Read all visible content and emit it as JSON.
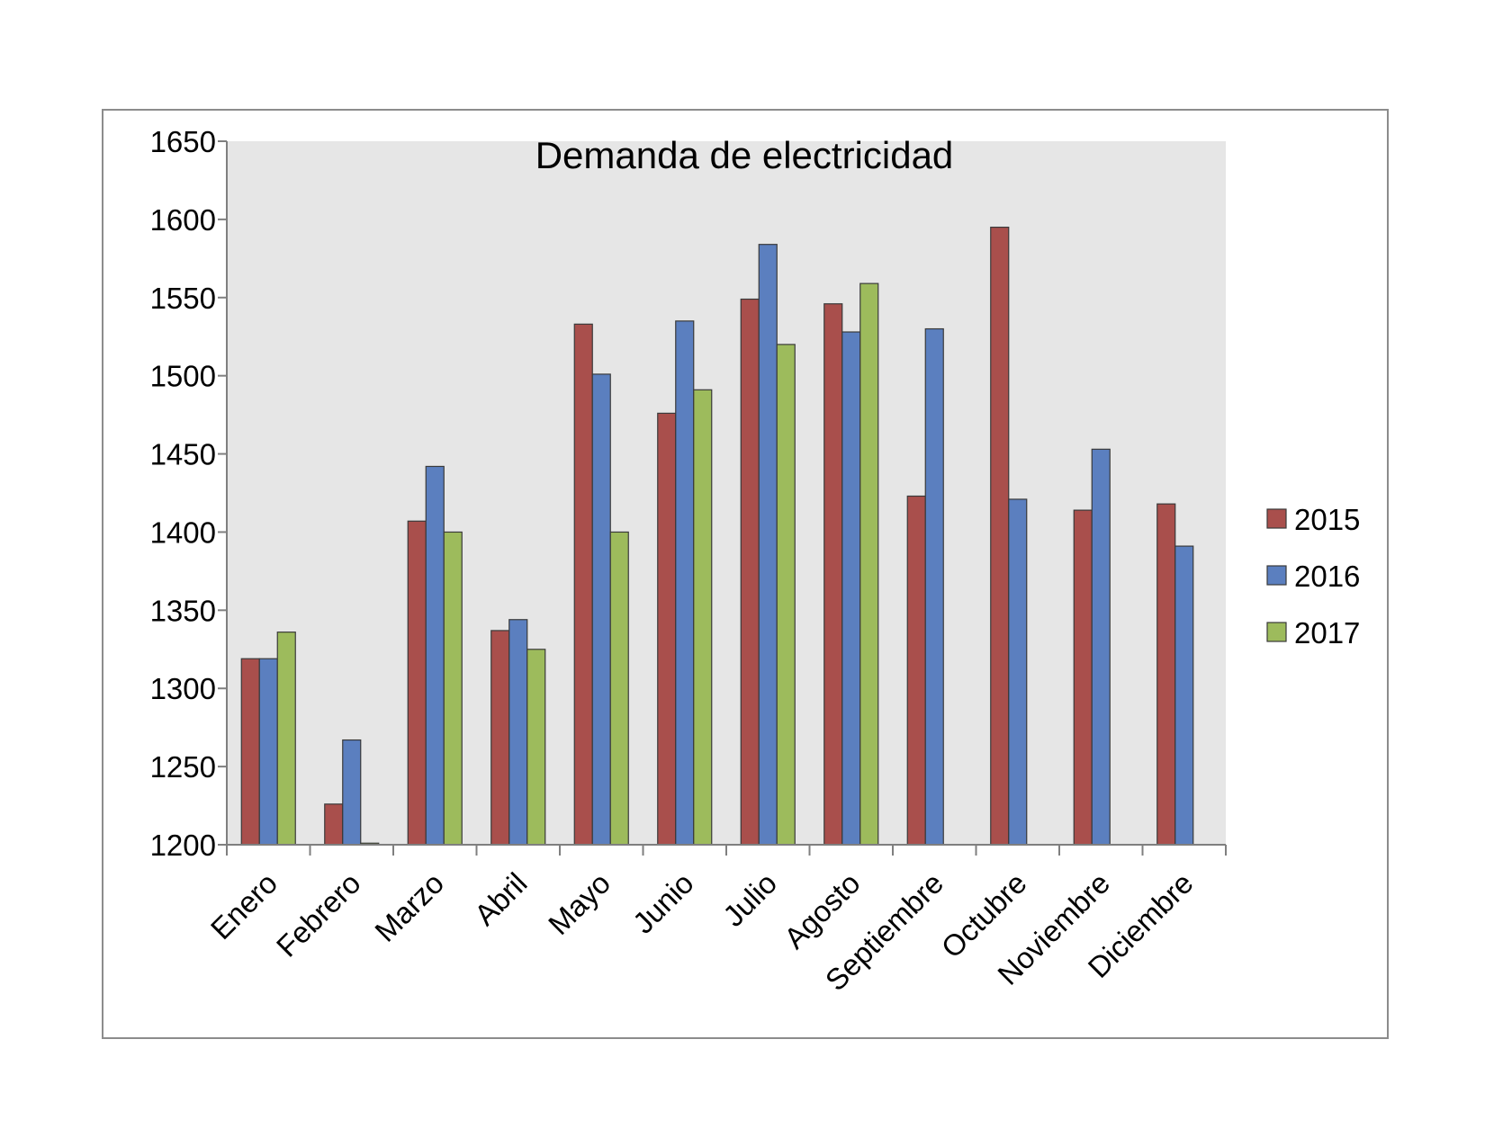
{
  "chart_data": {
    "type": "bar",
    "title": "Demanda de electricidad",
    "xlabel": "",
    "ylabel": "",
    "ylim": [
      1200,
      1650
    ],
    "yticks": [
      "1200",
      "1250",
      "1300",
      "1350",
      "1400",
      "1450",
      "1500",
      "1550",
      "1600",
      "1650"
    ],
    "categories": [
      "Enero",
      "Febrero",
      "Marzo",
      "Abril",
      "Mayo",
      "Junio",
      "Julio",
      "Agosto",
      "Septiembre",
      "Octubre",
      "Noviembre",
      "Diciembre"
    ],
    "series": [
      {
        "name": "2015",
        "color": "#a94f4c",
        "values": [
          1319,
          1226,
          1407,
          1337,
          1533,
          1476,
          1549,
          1546,
          1423,
          1595,
          1414,
          1418
        ]
      },
      {
        "name": "2016",
        "color": "#5b7fbf",
        "values": [
          1319,
          1267,
          1442,
          1344,
          1501,
          1535,
          1584,
          1528,
          1530,
          1421,
          1453,
          1391
        ]
      },
      {
        "name": "2017",
        "color": "#9dbb5c",
        "values": [
          1336,
          1201,
          1400,
          1325,
          1400,
          1491,
          1520,
          1559,
          null,
          null,
          null,
          null
        ]
      }
    ],
    "legend_position": "right",
    "plot_background": "#e6e6e6",
    "grid": false
  }
}
